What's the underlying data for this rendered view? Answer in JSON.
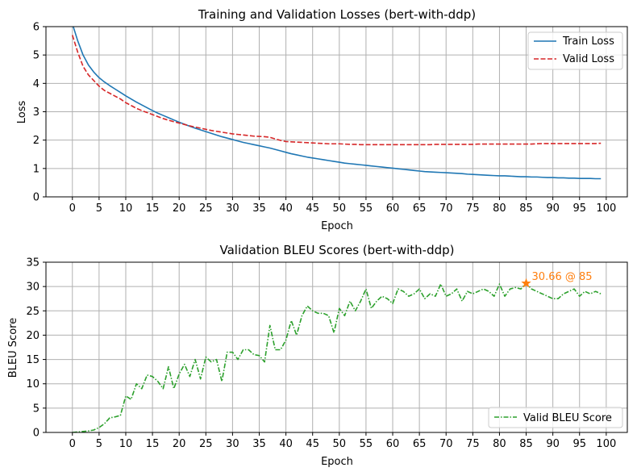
{
  "chart_data": [
    {
      "type": "line",
      "title": "Training and Validation Losses (bert-with-ddp)",
      "xlabel": "Epoch",
      "ylabel": "Loss",
      "xlim": [
        -4.95,
        103.95
      ],
      "ylim": [
        0,
        6
      ],
      "xticks": [
        0,
        5,
        10,
        15,
        20,
        25,
        30,
        35,
        40,
        45,
        50,
        55,
        60,
        65,
        70,
        75,
        80,
        85,
        90,
        95,
        100
      ],
      "yticks": [
        0,
        1,
        2,
        3,
        4,
        5,
        6
      ],
      "grid": true,
      "legend": "top-right",
      "x": [
        0,
        1,
        2,
        3,
        4,
        5,
        6,
        7,
        8,
        9,
        10,
        11,
        12,
        13,
        14,
        15,
        16,
        17,
        18,
        19,
        20,
        21,
        22,
        23,
        24,
        25,
        26,
        27,
        28,
        29,
        30,
        31,
        32,
        33,
        34,
        35,
        36,
        37,
        38,
        39,
        40,
        41,
        42,
        43,
        44,
        45,
        46,
        47,
        48,
        49,
        50,
        51,
        52,
        53,
        54,
        55,
        56,
        57,
        58,
        59,
        60,
        61,
        62,
        63,
        64,
        65,
        66,
        67,
        68,
        69,
        70,
        71,
        72,
        73,
        74,
        75,
        76,
        77,
        78,
        79,
        80,
        81,
        82,
        83,
        84,
        85,
        86,
        87,
        88,
        89,
        90,
        91,
        92,
        93,
        94,
        95,
        96,
        97,
        98,
        99
      ],
      "series": [
        {
          "name": "Train Loss",
          "color": "#1f77b4",
          "dash": "solid",
          "values": [
            6.1,
            5.5,
            5.0,
            4.65,
            4.4,
            4.2,
            4.05,
            3.92,
            3.8,
            3.68,
            3.56,
            3.45,
            3.34,
            3.24,
            3.14,
            3.04,
            2.95,
            2.87,
            2.79,
            2.71,
            2.63,
            2.56,
            2.49,
            2.42,
            2.36,
            2.3,
            2.24,
            2.18,
            2.12,
            2.07,
            2.02,
            1.97,
            1.92,
            1.88,
            1.84,
            1.8,
            1.76,
            1.72,
            1.67,
            1.62,
            1.57,
            1.52,
            1.48,
            1.44,
            1.4,
            1.37,
            1.34,
            1.31,
            1.28,
            1.25,
            1.22,
            1.19,
            1.17,
            1.15,
            1.13,
            1.11,
            1.09,
            1.07,
            1.05,
            1.03,
            1.01,
            0.99,
            0.97,
            0.95,
            0.93,
            0.91,
            0.89,
            0.88,
            0.87,
            0.86,
            0.85,
            0.84,
            0.83,
            0.82,
            0.8,
            0.79,
            0.78,
            0.77,
            0.76,
            0.75,
            0.74,
            0.74,
            0.73,
            0.72,
            0.71,
            0.71,
            0.7,
            0.7,
            0.69,
            0.68,
            0.68,
            0.67,
            0.67,
            0.66,
            0.66,
            0.65,
            0.65,
            0.65,
            0.64,
            0.64
          ]
        },
        {
          "name": "Valid Loss",
          "color": "#d62728",
          "dash": "dashed",
          "values": [
            5.7,
            5.1,
            4.6,
            4.3,
            4.1,
            3.9,
            3.75,
            3.65,
            3.55,
            3.45,
            3.32,
            3.22,
            3.12,
            3.04,
            2.97,
            2.9,
            2.83,
            2.76,
            2.7,
            2.65,
            2.6,
            2.55,
            2.5,
            2.46,
            2.42,
            2.38,
            2.34,
            2.31,
            2.28,
            2.25,
            2.22,
            2.2,
            2.18,
            2.16,
            2.14,
            2.13,
            2.12,
            2.1,
            2.04,
            1.99,
            1.95,
            1.94,
            1.93,
            1.92,
            1.91,
            1.9,
            1.89,
            1.88,
            1.87,
            1.87,
            1.87,
            1.86,
            1.85,
            1.85,
            1.84,
            1.84,
            1.84,
            1.84,
            1.84,
            1.84,
            1.84,
            1.84,
            1.84,
            1.84,
            1.84,
            1.84,
            1.84,
            1.84,
            1.85,
            1.85,
            1.85,
            1.85,
            1.85,
            1.85,
            1.85,
            1.85,
            1.86,
            1.86,
            1.86,
            1.86,
            1.86,
            1.86,
            1.86,
            1.86,
            1.86,
            1.86,
            1.86,
            1.87,
            1.88,
            1.88,
            1.88,
            1.88,
            1.88,
            1.88,
            1.88,
            1.88,
            1.88,
            1.88,
            1.88,
            1.89
          ]
        }
      ]
    },
    {
      "type": "line",
      "title": "Validation BLEU Scores (bert-with-ddp)",
      "xlabel": "Epoch",
      "ylabel": "BLEU Score",
      "xlim": [
        -4.95,
        103.95
      ],
      "ylim": [
        0,
        35
      ],
      "xticks": [
        0,
        5,
        10,
        15,
        20,
        25,
        30,
        35,
        40,
        45,
        50,
        55,
        60,
        65,
        70,
        75,
        80,
        85,
        90,
        95,
        100
      ],
      "yticks": [
        0,
        5,
        10,
        15,
        20,
        25,
        30,
        35
      ],
      "grid": true,
      "legend": "bottom-right",
      "x": [
        0,
        1,
        2,
        3,
        4,
        5,
        6,
        7,
        8,
        9,
        10,
        11,
        12,
        13,
        14,
        15,
        16,
        17,
        18,
        19,
        20,
        21,
        22,
        23,
        24,
        25,
        26,
        27,
        28,
        29,
        30,
        31,
        32,
        33,
        34,
        35,
        36,
        37,
        38,
        39,
        40,
        41,
        42,
        43,
        44,
        45,
        46,
        47,
        48,
        49,
        50,
        51,
        52,
        53,
        54,
        55,
        56,
        57,
        58,
        59,
        60,
        61,
        62,
        63,
        64,
        65,
        66,
        67,
        68,
        69,
        70,
        71,
        72,
        73,
        74,
        75,
        76,
        77,
        78,
        79,
        80,
        81,
        82,
        83,
        84,
        85,
        86,
        87,
        88,
        89,
        90,
        91,
        92,
        93,
        94,
        95,
        96,
        97,
        98,
        99
      ],
      "series": [
        {
          "name": "Valid BLEU Score",
          "color": "#2ca02c",
          "dash": "dashdot",
          "values": [
            0,
            0.1,
            0.2,
            0.3,
            0.5,
            1.0,
            1.8,
            3.0,
            3.2,
            3.5,
            7.5,
            6.8,
            10.0,
            9.0,
            11.8,
            11.5,
            10.5,
            9.0,
            13.5,
            9.0,
            12.0,
            14.0,
            11.5,
            15.0,
            11.0,
            15.5,
            14.5,
            15.0,
            10.5,
            16.5,
            16.5,
            15.0,
            17.0,
            17.0,
            16.0,
            15.8,
            14.5,
            22.0,
            17.0,
            17.0,
            19.0,
            23.0,
            20.0,
            24.0,
            26.0,
            25.0,
            24.5,
            24.5,
            24.0,
            20.5,
            25.5,
            24.0,
            27.0,
            25.0,
            27.0,
            29.5,
            25.5,
            27.0,
            28.0,
            27.5,
            26.5,
            29.5,
            29.0,
            28.0,
            28.5,
            29.5,
            27.5,
            28.5,
            28.0,
            30.5,
            28.0,
            28.5,
            29.5,
            27.0,
            29.0,
            28.5,
            29.0,
            29.5,
            29.0,
            28.0,
            30.5,
            28.0,
            29.5,
            29.8,
            29.5,
            30.66,
            29.5,
            29.0,
            28.5,
            28.0,
            27.5,
            27.5,
            28.5,
            29.0,
            29.5,
            28.0,
            29.0,
            28.5,
            29.0,
            28.5
          ]
        }
      ],
      "annotation": {
        "text": "30.66 @ 85",
        "x": 85,
        "y": 30.66,
        "color": "#ff7f0e",
        "marker": "star"
      }
    }
  ]
}
